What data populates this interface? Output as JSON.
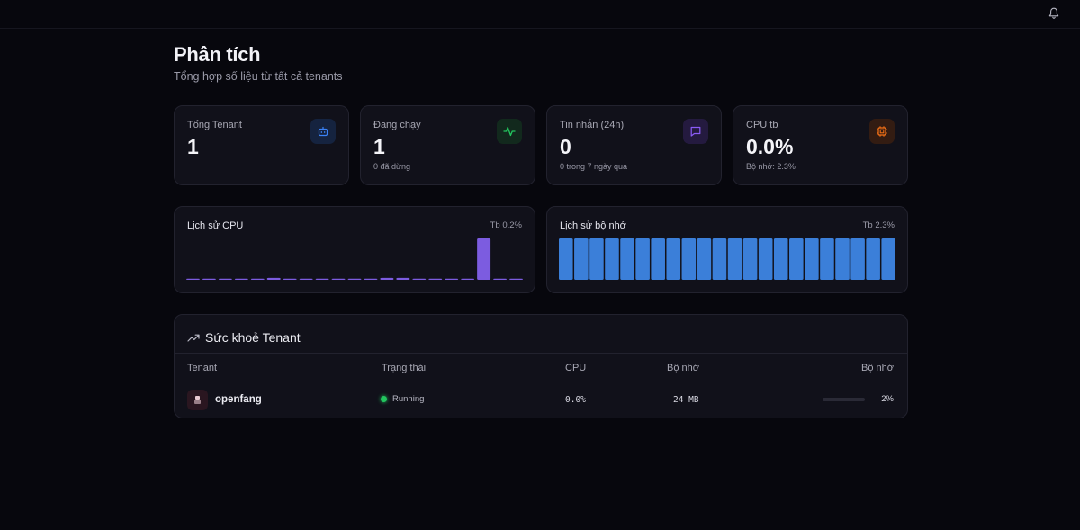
{
  "header": {
    "notification_icon": "bell-icon"
  },
  "page": {
    "title": "Phân tích",
    "subtitle": "Tổng hợp số liệu từ tất cả tenants"
  },
  "stats": [
    {
      "label": "Tổng Tenant",
      "value": "1",
      "sub": "",
      "icon": "bot-icon",
      "color": "#3b82f6"
    },
    {
      "label": "Đang chạy",
      "value": "1",
      "sub": "0 đã dừng",
      "icon": "activity-icon",
      "color": "#22c55e"
    },
    {
      "label": "Tin nhắn (24h)",
      "value": "0",
      "sub": "0 trong 7 ngày qua",
      "icon": "message-icon",
      "color": "#8b5cf6"
    },
    {
      "label": "CPU tb",
      "value": "0.0%",
      "sub": "Bộ nhớ: 2.3%",
      "icon": "cpu-icon",
      "color": "#f97316"
    }
  ],
  "cpu_chart": {
    "title": "Lịch sử CPU",
    "avg": "Tb 0.2%"
  },
  "memory_chart": {
    "title": "Lịch sử bộ nhớ",
    "avg": "Tb 2.3%"
  },
  "chart_data": [
    {
      "type": "bar",
      "title": "Lịch sử CPU",
      "values": [
        0.05,
        0.05,
        0.05,
        0.05,
        0.05,
        0.1,
        0.05,
        0.05,
        0.05,
        0.05,
        0.05,
        0.05,
        0.1,
        0.1,
        0.05,
        0.05,
        0.05,
        0.05,
        2.2,
        0.05,
        0.05
      ],
      "color": "#7c5ce0"
    },
    {
      "type": "bar",
      "title": "Lịch sử bộ nhớ",
      "values": [
        2.3,
        2.3,
        2.3,
        2.3,
        2.3,
        2.3,
        2.3,
        2.3,
        2.3,
        2.3,
        2.3,
        2.3,
        2.3,
        2.3,
        2.3,
        2.3,
        2.3,
        2.3,
        2.3,
        2.3,
        2.3,
        2.3
      ],
      "color": "#3b7fd9"
    }
  ],
  "health": {
    "title": "Sức khoẻ Tenant",
    "columns": [
      "Tenant",
      "Trạng thái",
      "CPU",
      "Bộ nhớ",
      "Bộ nhớ"
    ],
    "rows": [
      {
        "name": "openfang",
        "status": "Running",
        "cpu": "0.0%",
        "memory": "24 MB",
        "memory_pct": "2%",
        "memory_fraction": 0.02
      }
    ]
  }
}
